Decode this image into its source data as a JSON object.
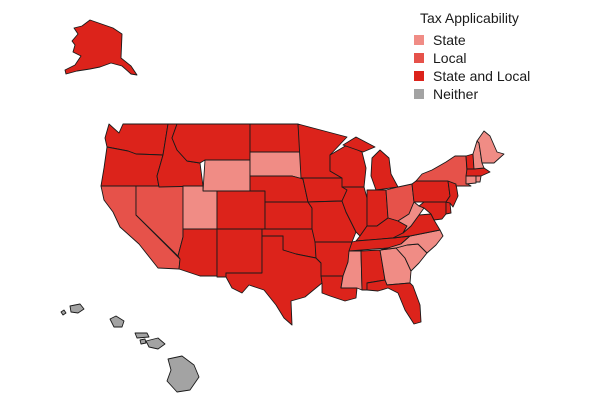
{
  "legend": {
    "title": "Tax Applicability",
    "items": [
      {
        "label": "State",
        "color": "#f08c85"
      },
      {
        "label": "Local",
        "color": "#e6524a"
      },
      {
        "label": "State and Local",
        "color": "#dc231b"
      },
      {
        "label": "Neither",
        "color": "#a3a3a3"
      }
    ]
  },
  "colors": {
    "state": "#f08c85",
    "local": "#e6524a",
    "state_and_local": "#dc231b",
    "neither": "#a3a3a3",
    "border": "#1a1a1a"
  },
  "regions": [
    {
      "name": "alaska",
      "category": "state_and_local"
    },
    {
      "name": "hawaii",
      "category": "neither"
    },
    {
      "name": "washington",
      "category": "state_and_local"
    },
    {
      "name": "oregon",
      "category": "state_and_local"
    },
    {
      "name": "california",
      "category": "local"
    },
    {
      "name": "nevada",
      "category": "local"
    },
    {
      "name": "idaho",
      "category": "state_and_local"
    },
    {
      "name": "montana",
      "category": "state_and_local"
    },
    {
      "name": "wyoming",
      "category": "state"
    },
    {
      "name": "utah",
      "category": "state"
    },
    {
      "name": "arizona",
      "category": "state_and_local"
    },
    {
      "name": "colorado",
      "category": "state_and_local"
    },
    {
      "name": "new-mexico",
      "category": "state_and_local"
    },
    {
      "name": "north-dakota",
      "category": "state_and_local"
    },
    {
      "name": "south-dakota",
      "category": "state"
    },
    {
      "name": "nebraska",
      "category": "state_and_local"
    },
    {
      "name": "kansas",
      "category": "state_and_local"
    },
    {
      "name": "oklahoma",
      "category": "state_and_local"
    },
    {
      "name": "texas",
      "category": "state_and_local"
    },
    {
      "name": "minnesota",
      "category": "state_and_local"
    },
    {
      "name": "iowa",
      "category": "state_and_local"
    },
    {
      "name": "missouri",
      "category": "state_and_local"
    },
    {
      "name": "arkansas",
      "category": "state_and_local"
    },
    {
      "name": "louisiana",
      "category": "state_and_local"
    },
    {
      "name": "wisconsin",
      "category": "state_and_local"
    },
    {
      "name": "illinois",
      "category": "state_and_local"
    },
    {
      "name": "michigan",
      "category": "state_and_local"
    },
    {
      "name": "indiana",
      "category": "state_and_local"
    },
    {
      "name": "ohio",
      "category": "local"
    },
    {
      "name": "kentucky",
      "category": "state_and_local"
    },
    {
      "name": "tennessee",
      "category": "state_and_local"
    },
    {
      "name": "mississippi",
      "category": "state"
    },
    {
      "name": "alabama",
      "category": "state_and_local"
    },
    {
      "name": "georgia",
      "category": "state"
    },
    {
      "name": "florida",
      "category": "state_and_local"
    },
    {
      "name": "south-carolina",
      "category": "state"
    },
    {
      "name": "north-carolina",
      "category": "state"
    },
    {
      "name": "virginia",
      "category": "state_and_local"
    },
    {
      "name": "west-virginia",
      "category": "state"
    },
    {
      "name": "maryland",
      "category": "state_and_local"
    },
    {
      "name": "delaware",
      "category": "state_and_local"
    },
    {
      "name": "pennsylvania",
      "category": "state_and_local"
    },
    {
      "name": "new-jersey",
      "category": "state_and_local"
    },
    {
      "name": "new-york",
      "category": "local"
    },
    {
      "name": "connecticut",
      "category": "state"
    },
    {
      "name": "rhode-island",
      "category": "state"
    },
    {
      "name": "massachusetts",
      "category": "state_and_local"
    },
    {
      "name": "vermont",
      "category": "state_and_local"
    },
    {
      "name": "new-hampshire",
      "category": "state"
    },
    {
      "name": "maine",
      "category": "state"
    }
  ]
}
